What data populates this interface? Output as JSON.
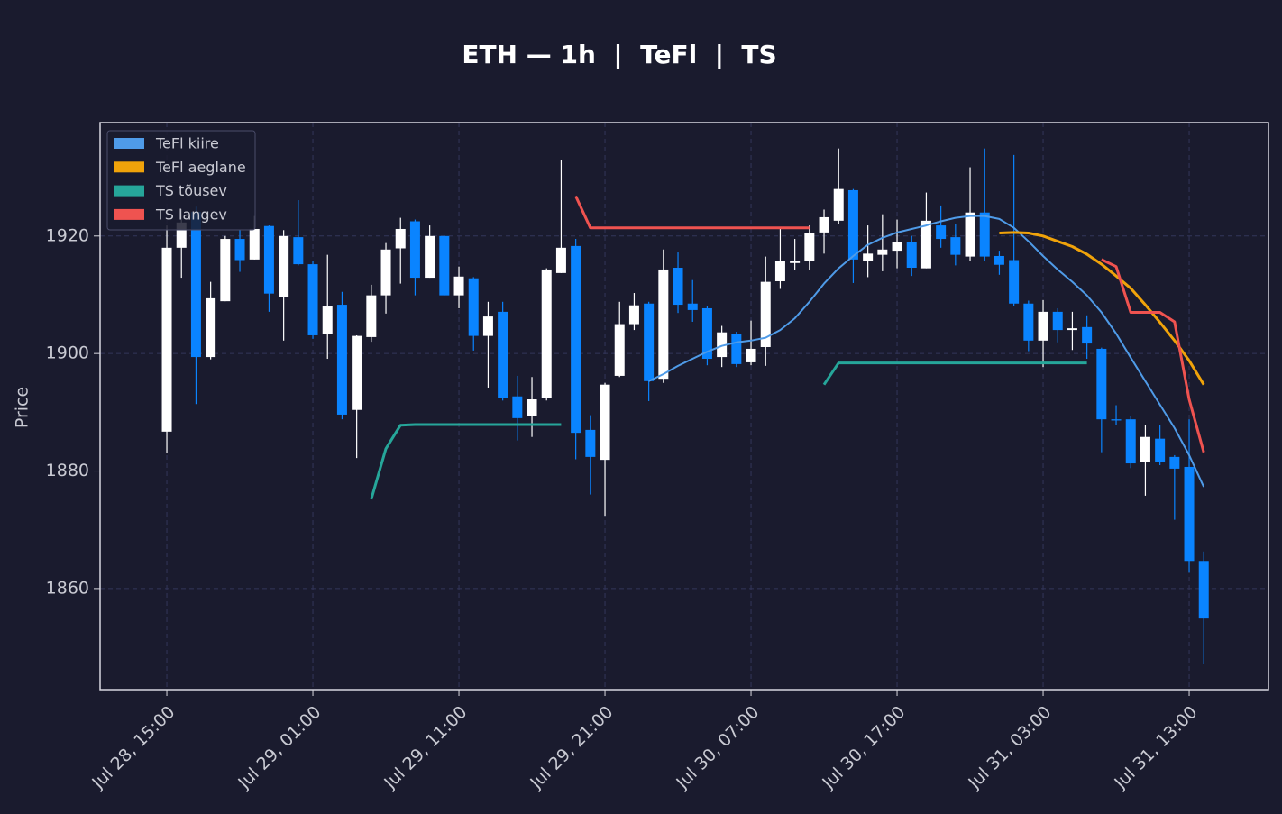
{
  "chart_data": {
    "type": "candlestick",
    "title": "ETH — 1h  |  TeFl  |  TS",
    "y_label": "Price",
    "x": [
      "Jul 28, 15:00",
      "Jul 28, 16:00",
      "Jul 28, 17:00",
      "Jul 28, 18:00",
      "Jul 28, 19:00",
      "Jul 28, 20:00",
      "Jul 28, 21:00",
      "Jul 28, 22:00",
      "Jul 28, 23:00",
      "Jul 29, 00:00",
      "Jul 29, 01:00",
      "Jul 29, 02:00",
      "Jul 29, 03:00",
      "Jul 29, 04:00",
      "Jul 29, 05:00",
      "Jul 29, 06:00",
      "Jul 29, 07:00",
      "Jul 29, 08:00",
      "Jul 29, 09:00",
      "Jul 29, 10:00",
      "Jul 29, 11:00",
      "Jul 29, 12:00",
      "Jul 29, 13:00",
      "Jul 29, 14:00",
      "Jul 29, 15:00",
      "Jul 29, 16:00",
      "Jul 29, 17:00",
      "Jul 29, 18:00",
      "Jul 29, 19:00",
      "Jul 29, 20:00",
      "Jul 29, 21:00",
      "Jul 29, 22:00",
      "Jul 29, 23:00",
      "Jul 30, 00:00",
      "Jul 30, 01:00",
      "Jul 30, 02:00",
      "Jul 30, 03:00",
      "Jul 30, 04:00",
      "Jul 30, 05:00",
      "Jul 30, 06:00",
      "Jul 30, 07:00",
      "Jul 30, 08:00",
      "Jul 30, 09:00",
      "Jul 30, 10:00",
      "Jul 30, 11:00",
      "Jul 30, 12:00",
      "Jul 30, 13:00",
      "Jul 30, 14:00",
      "Jul 30, 15:00",
      "Jul 30, 16:00",
      "Jul 30, 17:00",
      "Jul 30, 18:00",
      "Jul 30, 19:00",
      "Jul 30, 20:00",
      "Jul 30, 21:00",
      "Jul 30, 22:00",
      "Jul 30, 23:00",
      "Jul 31, 00:00",
      "Jul 31, 01:00",
      "Jul 31, 02:00",
      "Jul 31, 03:00",
      "Jul 31, 04:00",
      "Jul 31, 05:00",
      "Jul 31, 06:00",
      "Jul 31, 07:00",
      "Jul 31, 08:00",
      "Jul 31, 09:00",
      "Jul 31, 10:00",
      "Jul 31, 11:00",
      "Jul 31, 12:00",
      "Jul 31, 13:00",
      "Jul 31, 14:00"
    ],
    "open": [
      1886.7,
      1918.0,
      1924.1,
      1899.4,
      1908.9,
      1919.5,
      1916.0,
      1921.7,
      1909.6,
      1919.8,
      1915.2,
      1903.3,
      1908.3,
      1890.4,
      1902.8,
      1909.9,
      1917.9,
      1922.5,
      1912.9,
      1920.0,
      1909.9,
      1912.8,
      1903.0,
      1907.1,
      1892.7,
      1889.3,
      1892.5,
      1913.7,
      1918.3,
      1887.0,
      1881.9,
      1896.2,
      1905.0,
      1908.5,
      1895.7,
      1914.6,
      1908.5,
      1907.7,
      1899.4,
      1903.4,
      1898.5,
      1901.1,
      1912.3,
      1915.4,
      1915.7,
      1920.6,
      1922.6,
      1927.8,
      1915.7,
      1916.8,
      1917.5,
      1918.9,
      1914.5,
      1921.8,
      1919.8,
      1916.5,
      1924.0,
      1916.6,
      1915.9,
      1908.5,
      1902.2,
      1907.1,
      1904.0,
      1904.5,
      1900.8,
      1888.8,
      1888.8,
      1881.6,
      1885.5,
      1882.4,
      1880.7,
      1864.7
    ],
    "high": [
      1921.8,
      1924.6,
      1925.0,
      1912.2,
      1920.0,
      1921.0,
      1923.4,
      1921.8,
      1921.0,
      1926.1,
      1915.7,
      1916.8,
      1910.5,
      1903.1,
      1911.7,
      1918.8,
      1923.1,
      1922.8,
      1921.8,
      1920.0,
      1914.8,
      1913.0,
      1908.8,
      1908.8,
      1896.2,
      1896.0,
      1914.5,
      1933.0,
      1919.5,
      1889.5,
      1895.0,
      1908.8,
      1910.3,
      1908.8,
      1917.7,
      1917.2,
      1912.5,
      1908.0,
      1904.7,
      1903.7,
      1905.6,
      1916.5,
      1921.2,
      1919.5,
      1921.8,
      1924.5,
      1934.9,
      1928.0,
      1921.8,
      1923.7,
      1922.8,
      1920.0,
      1927.4,
      1925.2,
      1922.1,
      1931.7,
      1934.9,
      1917.5,
      1933.8,
      1909.0,
      1909.1,
      1907.7,
      1907.1,
      1906.5,
      1901.0,
      1891.2,
      1889.4,
      1887.9,
      1887.8,
      1882.7,
      1888.8,
      1866.3
    ],
    "low": [
      1883.0,
      1912.9,
      1891.4,
      1899.0,
      1908.9,
      1913.9,
      1916.0,
      1907.1,
      1902.2,
      1915.0,
      1902.5,
      1899.1,
      1888.8,
      1882.2,
      1902.0,
      1906.8,
      1911.9,
      1909.9,
      1912.9,
      1909.9,
      1907.7,
      1900.5,
      1894.2,
      1892.0,
      1885.2,
      1885.8,
      1892.0,
      1913.7,
      1882.0,
      1876.0,
      1872.4,
      1896.0,
      1904.0,
      1891.9,
      1895.0,
      1906.9,
      1905.4,
      1898.0,
      1897.7,
      1897.7,
      1898.0,
      1897.9,
      1911.0,
      1914.2,
      1914.2,
      1917.0,
      1922.0,
      1912.0,
      1913.0,
      1914.0,
      1914.5,
      1913.2,
      1914.5,
      1918.0,
      1915.0,
      1915.7,
      1915.7,
      1913.4,
      1908.0,
      1900.4,
      1897.7,
      1901.9,
      1900.6,
      1899.1,
      1883.2,
      1887.8,
      1880.5,
      1875.8,
      1881.0,
      1871.7,
      1862.7,
      1847.1
    ],
    "close": [
      1918.0,
      1922.3,
      1899.4,
      1909.4,
      1919.5,
      1915.9,
      1921.2,
      1910.2,
      1920.0,
      1915.2,
      1903.1,
      1908.0,
      1889.6,
      1903.0,
      1909.9,
      1917.7,
      1921.2,
      1912.9,
      1920.0,
      1909.9,
      1913.1,
      1903.0,
      1906.3,
      1892.5,
      1889.0,
      1892.2,
      1914.3,
      1918.0,
      1886.5,
      1882.4,
      1894.7,
      1905.0,
      1908.2,
      1895.3,
      1914.3,
      1908.3,
      1907.4,
      1899.1,
      1903.6,
      1898.2,
      1900.8,
      1912.2,
      1915.7,
      1915.7,
      1920.5,
      1923.2,
      1928.0,
      1916.0,
      1917.0,
      1917.7,
      1918.9,
      1914.6,
      1922.6,
      1919.5,
      1916.8,
      1924.0,
      1916.5,
      1915.1,
      1908.5,
      1902.2,
      1907.1,
      1904.0,
      1904.3,
      1901.7,
      1888.8,
      1888.6,
      1881.3,
      1885.8,
      1881.6,
      1880.4,
      1864.7,
      1854.9
    ],
    "up_color": "#ffffff",
    "down_color": "#0a84ff",
    "series": [
      {
        "name": "TeFl kiire",
        "color": "#4f9be8",
        "values": [
          null,
          null,
          null,
          null,
          null,
          null,
          null,
          null,
          null,
          null,
          null,
          null,
          null,
          null,
          null,
          null,
          null,
          null,
          null,
          null,
          null,
          null,
          null,
          null,
          null,
          null,
          null,
          null,
          null,
          null,
          null,
          null,
          null,
          1895.3,
          1896.5,
          1897.9,
          1899.1,
          1900.3,
          1901.3,
          1901.9,
          1902.2,
          1902.7,
          1904.0,
          1906.0,
          1908.8,
          1911.9,
          1914.5,
          1916.6,
          1918.5,
          1919.7,
          1920.6,
          1921.2,
          1921.8,
          1922.5,
          1923.1,
          1923.4,
          1923.4,
          1922.9,
          1921.4,
          1919.1,
          1916.6,
          1914.3,
          1912.2,
          1909.9,
          1907.0,
          1903.4,
          1899.3,
          1895.3,
          1891.3,
          1887.3,
          1882.7,
          1877.3
        ]
      },
      {
        "name": "TeFl aeglane",
        "color": "#f0a30a",
        "values": [
          null,
          null,
          null,
          null,
          null,
          null,
          null,
          null,
          null,
          null,
          null,
          null,
          null,
          null,
          null,
          null,
          null,
          null,
          null,
          null,
          null,
          null,
          null,
          null,
          null,
          null,
          null,
          null,
          null,
          null,
          null,
          null,
          null,
          null,
          null,
          null,
          null,
          null,
          null,
          null,
          null,
          null,
          null,
          null,
          null,
          null,
          null,
          null,
          null,
          null,
          null,
          null,
          null,
          null,
          null,
          null,
          null,
          1920.5,
          1920.6,
          1920.5,
          1920.0,
          1919.1,
          1918.2,
          1916.9,
          1915.2,
          1913.2,
          1911.1,
          1908.3,
          1905.3,
          1902.2,
          1898.8,
          1894.7
        ]
      },
      {
        "name": "TS tõusev",
        "color": "#26a69a",
        "values": [
          null,
          null,
          null,
          null,
          null,
          null,
          null,
          null,
          null,
          null,
          null,
          null,
          null,
          null,
          1875.2,
          1883.8,
          1887.8,
          1887.9,
          1887.9,
          1887.9,
          1887.9,
          1887.9,
          1887.9,
          1887.9,
          1887.9,
          1887.9,
          1887.9,
          1887.9,
          null,
          null,
          null,
          null,
          null,
          null,
          null,
          null,
          null,
          null,
          null,
          null,
          null,
          null,
          null,
          null,
          null,
          1894.7,
          1898.4,
          1898.4,
          1898.4,
          1898.4,
          1898.4,
          1898.4,
          1898.4,
          1898.4,
          1898.4,
          1898.4,
          1898.4,
          1898.4,
          1898.4,
          1898.4,
          1898.4,
          1898.4,
          1898.4,
          1898.4,
          null,
          null,
          null,
          null,
          null,
          null,
          null,
          null
        ]
      },
      {
        "name": "TS langev",
        "color": "#ef5350",
        "values": [
          null,
          null,
          null,
          null,
          null,
          null,
          null,
          null,
          null,
          null,
          null,
          null,
          null,
          null,
          null,
          null,
          null,
          null,
          null,
          null,
          null,
          null,
          null,
          null,
          null,
          null,
          null,
          null,
          1926.8,
          1921.4,
          1921.4,
          1921.4,
          1921.4,
          1921.4,
          1921.4,
          1921.4,
          1921.4,
          1921.4,
          1921.4,
          1921.4,
          1921.4,
          1921.4,
          1921.4,
          1921.4,
          1921.4,
          null,
          null,
          null,
          null,
          null,
          null,
          null,
          null,
          null,
          null,
          null,
          null,
          null,
          null,
          null,
          null,
          null,
          null,
          null,
          1916.0,
          1914.8,
          1907.0,
          1907.0,
          1907.0,
          1905.4,
          1892.2,
          1883.2
        ]
      }
    ],
    "ylim": [
      1842.8,
      1939.3
    ],
    "yticks": [
      1860,
      1880,
      1900,
      1920
    ],
    "xticks": [
      "Jul 28, 15:00",
      "Jul 29, 01:00",
      "Jul 29, 11:00",
      "Jul 29, 21:00",
      "Jul 30, 07:00",
      "Jul 30, 17:00",
      "Jul 31, 03:00",
      "Jul 31, 13:00"
    ],
    "grid": true,
    "legend": "upper left"
  }
}
